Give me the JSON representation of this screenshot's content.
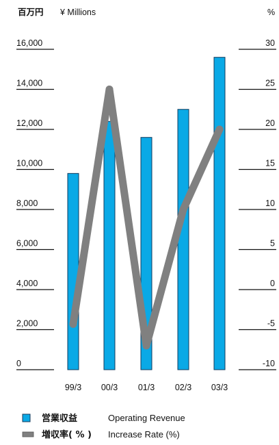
{
  "chart_data": {
    "type": "bar+line",
    "units": {
      "left_jp": "百万円",
      "left_en": "¥ Millions",
      "right": "%"
    },
    "categories": [
      "99/3",
      "00/3",
      "01/3",
      "02/3",
      "03/3"
    ],
    "left_axis": {
      "ylim": [
        0,
        16000
      ],
      "ticks": [
        "0",
        "2,000",
        "4,000",
        "6,000",
        "8,000",
        "10,000",
        "12,000",
        "14,000",
        "16,000"
      ]
    },
    "right_axis": {
      "ylim": [
        -10,
        30
      ],
      "ticks": [
        "-10",
        "-5",
        "0",
        "5",
        "10",
        "15",
        "20",
        "25",
        "30"
      ]
    },
    "series": [
      {
        "name": "Operating Revenue",
        "name_jp": "営業収益",
        "type": "bar",
        "axis": "left",
        "color": "#0aa9e6",
        "values": [
          9800,
          12400,
          11600,
          13000,
          15600
        ]
      },
      {
        "name": "Increase Rate (%)",
        "name_jp": "増収率( % )",
        "type": "line",
        "axis": "right",
        "color": "#808080",
        "values": [
          -4.3,
          25,
          -7,
          10,
          20
        ]
      }
    ],
    "grid": false,
    "legend_position": "bottom-left"
  }
}
